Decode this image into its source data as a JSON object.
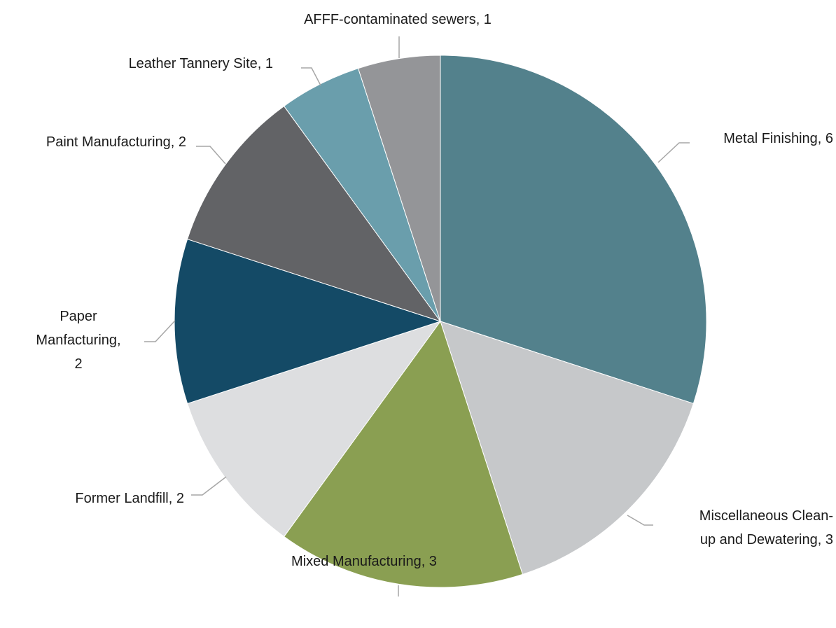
{
  "chart_data": {
    "type": "pie",
    "title": "",
    "start": "12 o'clock",
    "direction": "clockwise",
    "slices": [
      {
        "name": "Metal Finishing",
        "value": 6,
        "label_lines": [
          "Metal Finishing, 6"
        ],
        "color": "#53818c"
      },
      {
        "name": "Miscellaneous Clean-up and Dewatering",
        "value": 3,
        "label_lines": [
          "Miscellaneous Clean-",
          "up and Dewatering, 3"
        ],
        "color": "#c6c8ca"
      },
      {
        "name": "Mixed Manufacturing",
        "value": 3,
        "label_lines": [
          "Mixed Manufacturing, 3"
        ],
        "color": "#8a9f52"
      },
      {
        "name": "Former Landfill",
        "value": 2,
        "label_lines": [
          "Former Landfill,  2"
        ],
        "color": "#dddee0"
      },
      {
        "name": "Paper Manfacturing",
        "value": 2,
        "label_lines": [
          "Paper",
          "Manfacturing,",
          "2"
        ],
        "color": "#144a66"
      },
      {
        "name": "Paint Manufacturing",
        "value": 2,
        "label_lines": [
          "Paint Manufacturing, 2"
        ],
        "color": "#626366"
      },
      {
        "name": "Leather Tannery Site",
        "value": 1,
        "label_lines": [
          "Leather Tannery Site, 1"
        ],
        "color": "#6a9eac"
      },
      {
        "name": "AFFF-contaminated sewers",
        "value": 1,
        "label_lines": [
          "AFFF-contaminated sewers, 1"
        ],
        "color": "#949598"
      }
    ]
  }
}
